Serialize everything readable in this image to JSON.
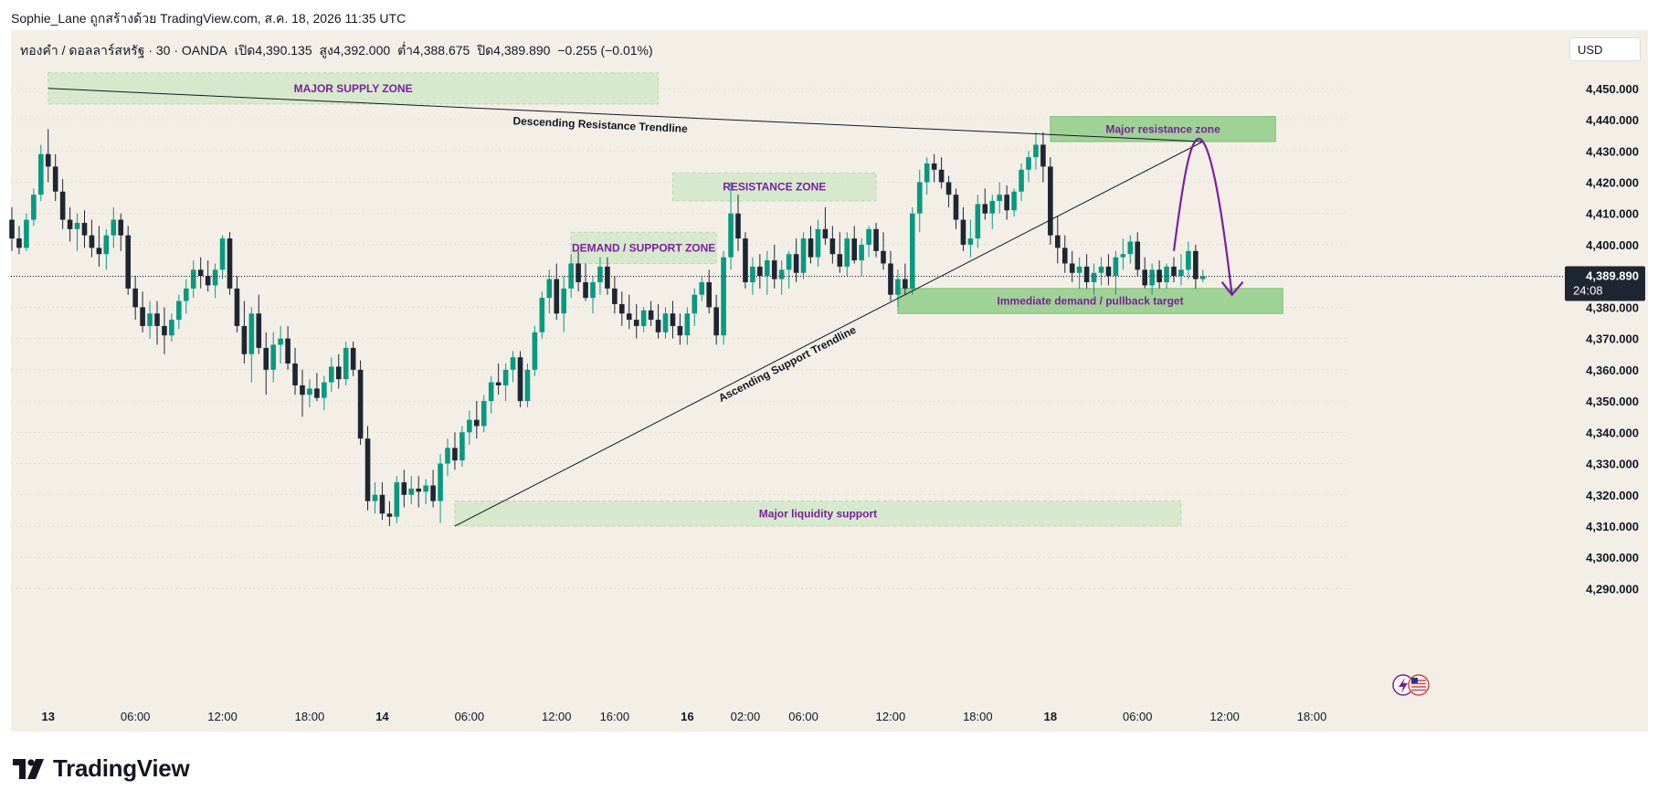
{
  "attribution": "Sophie_Lane ถูกสร้างด้วย TradingView.com, ส.ค. 18, 2026 11:35 UTC",
  "header": {
    "symbol": "ทองคำ / ดอลลาร์สหรัฐ · 30 · OANDA",
    "open": "เปิด4,390.135",
    "high": "สูง4,392.000",
    "low": "ต่ำ4,388.675",
    "close": "ปิด4,389.890",
    "change": "−0.255 (−0.01%)",
    "currency": "USD"
  },
  "brand": "TradingView",
  "colors": {
    "background": "#f3efe7",
    "up": "#089981",
    "down": "#1f2633",
    "zone": "#c5e4bd",
    "zone_strong": "#8fcc86",
    "annotation_text": "#7b1fa2",
    "arrow": "#7b1fa2"
  },
  "chart_data": {
    "type": "candlestick",
    "symbol": "XAU/USD",
    "interval": "30",
    "ylim": [
      4284,
      4459
    ],
    "y_ticks": [
      4290,
      4300,
      4310,
      4320,
      4330,
      4340,
      4350,
      4360,
      4370,
      4380,
      4390,
      4400,
      4410,
      4420,
      4430,
      4440,
      4450
    ],
    "y_tick_labels": [
      "4,290.000",
      "4,300.000",
      "4,310.000",
      "4,320.000",
      "4,330.000",
      "4,340.000",
      "4,350.000",
      "4,360.000",
      "4,370.000",
      "4,380.000",
      "4,390.000",
      "4,400.000",
      "4,410.000",
      "4,420.000",
      "4,430.000",
      "4,440.000",
      "4,450.000"
    ],
    "x_ticks": [
      {
        "bar": 5,
        "label": "13",
        "bold": true
      },
      {
        "bar": 17,
        "label": "06:00",
        "bold": false
      },
      {
        "bar": 29,
        "label": "12:00",
        "bold": false
      },
      {
        "bar": 41,
        "label": "18:00",
        "bold": false
      },
      {
        "bar": 51,
        "label": "14",
        "bold": true
      },
      {
        "bar": 63,
        "label": "06:00",
        "bold": false
      },
      {
        "bar": 75,
        "label": "12:00",
        "bold": false
      },
      {
        "bar": 83,
        "label": "16:00",
        "bold": false
      },
      {
        "bar": 93,
        "label": "16",
        "bold": true
      },
      {
        "bar": 101,
        "label": "02:00",
        "bold": false
      },
      {
        "bar": 109,
        "label": "06:00",
        "bold": false
      },
      {
        "bar": 121,
        "label": "12:00",
        "bold": false
      },
      {
        "bar": 133,
        "label": "18:00",
        "bold": false
      },
      {
        "bar": 143,
        "label": "18",
        "bold": true
      },
      {
        "bar": 155,
        "label": "06:00",
        "bold": false
      },
      {
        "bar": 167,
        "label": "12:00",
        "bold": false
      },
      {
        "bar": 179,
        "label": "18:00",
        "bold": false
      }
    ],
    "last_price": {
      "value": 4389.89,
      "label": "4,389.890",
      "countdown": "24:08"
    },
    "candles": [
      [
        4408,
        4412,
        4398,
        4402
      ],
      [
        4402,
        4406,
        4397,
        4399
      ],
      [
        4399,
        4410,
        4398,
        4408
      ],
      [
        4408,
        4418,
        4406,
        4416
      ],
      [
        4416,
        4432,
        4414,
        4429
      ],
      [
        4429,
        4437,
        4420,
        4425
      ],
      [
        4425,
        4429,
        4414,
        4417
      ],
      [
        4417,
        4421,
        4405,
        4408
      ],
      [
        4408,
        4412,
        4401,
        4405
      ],
      [
        4405,
        4410,
        4398,
        4407
      ],
      [
        4407,
        4411,
        4399,
        4403
      ],
      [
        4403,
        4408,
        4396,
        4399
      ],
      [
        4399,
        4406,
        4393,
        4397
      ],
      [
        4397,
        4405,
        4392,
        4403
      ],
      [
        4403,
        4412,
        4399,
        4408
      ],
      [
        4408,
        4410,
        4398,
        4403
      ],
      [
        4403,
        4406,
        4384,
        4386
      ],
      [
        4386,
        4390,
        4376,
        4380
      ],
      [
        4380,
        4385,
        4372,
        4374
      ],
      [
        4374,
        4382,
        4370,
        4378
      ],
      [
        4378,
        4382,
        4368,
        4374
      ],
      [
        4374,
        4380,
        4365,
        4371
      ],
      [
        4371,
        4378,
        4369,
        4376
      ],
      [
        4376,
        4384,
        4373,
        4382
      ],
      [
        4382,
        4389,
        4378,
        4386
      ],
      [
        4386,
        4395,
        4383,
        4392
      ],
      [
        4392,
        4396,
        4386,
        4390
      ],
      [
        4390,
        4395,
        4385,
        4387
      ],
      [
        4387,
        4394,
        4383,
        4392
      ],
      [
        4392,
        4403,
        4389,
        4402
      ],
      [
        4402,
        4404,
        4384,
        4386
      ],
      [
        4386,
        4390,
        4372,
        4374
      ],
      [
        4374,
        4382,
        4362,
        4365
      ],
      [
        4365,
        4380,
        4356,
        4378
      ],
      [
        4378,
        4384,
        4365,
        4367
      ],
      [
        4367,
        4372,
        4352,
        4360
      ],
      [
        4360,
        4372,
        4356,
        4368
      ],
      [
        4368,
        4374,
        4362,
        4370
      ],
      [
        4370,
        4374,
        4360,
        4362
      ],
      [
        4362,
        4367,
        4352,
        4355
      ],
      [
        4355,
        4360,
        4345,
        4352
      ],
      [
        4352,
        4357,
        4348,
        4354
      ],
      [
        4354,
        4359,
        4350,
        4351
      ],
      [
        4351,
        4358,
        4347,
        4356
      ],
      [
        4356,
        4364,
        4353,
        4361
      ],
      [
        4361,
        4365,
        4354,
        4357
      ],
      [
        4357,
        4369,
        4355,
        4367
      ],
      [
        4367,
        4369,
        4358,
        4360
      ],
      [
        4360,
        4363,
        4336,
        4338
      ],
      [
        4338,
        4342,
        4315,
        4318
      ],
      [
        4318,
        4324,
        4314,
        4320
      ],
      [
        4320,
        4324,
        4312,
        4314
      ],
      [
        4314,
        4318,
        4310,
        4313
      ],
      [
        4313,
        4326,
        4311,
        4324
      ],
      [
        4324,
        4328,
        4316,
        4320
      ],
      [
        4320,
        4326,
        4317,
        4322
      ],
      [
        4322,
        4326,
        4316,
        4321
      ],
      [
        4321,
        4325,
        4317,
        4323
      ],
      [
        4323,
        4328,
        4316,
        4318
      ],
      [
        4318,
        4333,
        4311,
        4330
      ],
      [
        4330,
        4338,
        4326,
        4335
      ],
      [
        4335,
        4340,
        4328,
        4331
      ],
      [
        4331,
        4342,
        4329,
        4340
      ],
      [
        4340,
        4347,
        4336,
        4344
      ],
      [
        4344,
        4350,
        4338,
        4342
      ],
      [
        4342,
        4352,
        4340,
        4350
      ],
      [
        4350,
        4358,
        4346,
        4356
      ],
      [
        4356,
        4362,
        4352,
        4355
      ],
      [
        4355,
        4362,
        4350,
        4360
      ],
      [
        4360,
        4366,
        4356,
        4364
      ],
      [
        4364,
        4366,
        4348,
        4350
      ],
      [
        4350,
        4362,
        4348,
        4360
      ],
      [
        4360,
        4374,
        4358,
        4372
      ],
      [
        4372,
        4385,
        4370,
        4383
      ],
      [
        4383,
        4392,
        4378,
        4389
      ],
      [
        4389,
        4394,
        4376,
        4378
      ],
      [
        4378,
        4390,
        4372,
        4386
      ],
      [
        4386,
        4397,
        4383,
        4394
      ],
      [
        4394,
        4398,
        4385,
        4388
      ],
      [
        4388,
        4394,
        4382,
        4383
      ],
      [
        4383,
        4390,
        4378,
        4388
      ],
      [
        4388,
        4396,
        4384,
        4393
      ],
      [
        4393,
        4396,
        4384,
        4386
      ],
      [
        4386,
        4390,
        4378,
        4381
      ],
      [
        4381,
        4385,
        4374,
        4378
      ],
      [
        4378,
        4384,
        4373,
        4376
      ],
      [
        4376,
        4381,
        4370,
        4374
      ],
      [
        4374,
        4380,
        4372,
        4379
      ],
      [
        4379,
        4382,
        4374,
        4376
      ],
      [
        4376,
        4381,
        4370,
        4372
      ],
      [
        4372,
        4380,
        4370,
        4378
      ],
      [
        4378,
        4382,
        4370,
        4374
      ],
      [
        4374,
        4378,
        4368,
        4371
      ],
      [
        4371,
        4380,
        4368,
        4378
      ],
      [
        4378,
        4386,
        4374,
        4384
      ],
      [
        4384,
        4390,
        4382,
        4388
      ],
      [
        4388,
        4392,
        4378,
        4380
      ],
      [
        4380,
        4384,
        4368,
        4371
      ],
      [
        4371,
        4398,
        4368,
        4396
      ],
      [
        4396,
        4420,
        4392,
        4410
      ],
      [
        4410,
        4416,
        4398,
        4402
      ],
      [
        4402,
        4404,
        4386,
        4388
      ],
      [
        4388,
        4396,
        4384,
        4393
      ],
      [
        4393,
        4397,
        4386,
        4390
      ],
      [
        4390,
        4398,
        4384,
        4395
      ],
      [
        4395,
        4400,
        4386,
        4389
      ],
      [
        4389,
        4395,
        4384,
        4392
      ],
      [
        4392,
        4398,
        4386,
        4397
      ],
      [
        4397,
        4402,
        4388,
        4391
      ],
      [
        4391,
        4404,
        4389,
        4402
      ],
      [
        4402,
        4406,
        4394,
        4396
      ],
      [
        4396,
        4408,
        4393,
        4405
      ],
      [
        4405,
        4412,
        4400,
        4402
      ],
      [
        4402,
        4406,
        4394,
        4397
      ],
      [
        4397,
        4404,
        4391,
        4393
      ],
      [
        4393,
        4404,
        4390,
        4402
      ],
      [
        4402,
        4406,
        4394,
        4395
      ],
      [
        4395,
        4402,
        4390,
        4400
      ],
      [
        4400,
        4406,
        4396,
        4405
      ],
      [
        4405,
        4407,
        4396,
        4398
      ],
      [
        4398,
        4404,
        4392,
        4394
      ],
      [
        4394,
        4398,
        4382,
        4384
      ],
      [
        4384,
        4392,
        4380,
        4389
      ],
      [
        4389,
        4394,
        4384,
        4386
      ],
      [
        4386,
        4412,
        4384,
        4410
      ],
      [
        4410,
        4424,
        4404,
        4420
      ],
      [
        4420,
        4428,
        4416,
        4426
      ],
      [
        4426,
        4429,
        4420,
        4424
      ],
      [
        4424,
        4428,
        4418,
        4420
      ],
      [
        4420,
        4422,
        4412,
        4416
      ],
      [
        4416,
        4418,
        4405,
        4408
      ],
      [
        4408,
        4412,
        4398,
        4400
      ],
      [
        4400,
        4408,
        4396,
        4402
      ],
      [
        4402,
        4416,
        4399,
        4413
      ],
      [
        4413,
        4418,
        4408,
        4410
      ],
      [
        4410,
        4416,
        4405,
        4414
      ],
      [
        4414,
        4420,
        4410,
        4416
      ],
      [
        4416,
        4419,
        4408,
        4411
      ],
      [
        4411,
        4418,
        4409,
        4417
      ],
      [
        4417,
        4426,
        4414,
        4424
      ],
      [
        4424,
        4430,
        4420,
        4428
      ],
      [
        4428,
        4436,
        4424,
        4432
      ],
      [
        4432,
        4436,
        4420,
        4425
      ],
      [
        4425,
        4428,
        4400,
        4403
      ],
      [
        4403,
        4409,
        4394,
        4399
      ],
      [
        4399,
        4403,
        4391,
        4394
      ],
      [
        4394,
        4398,
        4388,
        4391
      ],
      [
        4391,
        4396,
        4386,
        4393
      ],
      [
        4393,
        4397,
        4386,
        4388
      ],
      [
        4388,
        4394,
        4384,
        4391
      ],
      [
        4391,
        4396,
        4387,
        4393
      ],
      [
        4393,
        4397,
        4387,
        4390
      ],
      [
        4390,
        4398,
        4384,
        4396
      ],
      [
        4396,
        4402,
        4392,
        4397
      ],
      [
        4397,
        4403,
        4394,
        4401
      ],
      [
        4401,
        4404,
        4390,
        4392
      ],
      [
        4392,
        4396,
        4386,
        4387
      ],
      [
        4387,
        4394,
        4384,
        4392
      ],
      [
        4392,
        4395,
        4386,
        4388
      ],
      [
        4388,
        4394,
        4386,
        4393
      ],
      [
        4393,
        4396,
        4388,
        4390
      ],
      [
        4390,
        4397,
        4387,
        4392
      ],
      [
        4392,
        4401,
        4389,
        4398
      ],
      [
        4398,
        4400,
        4386,
        4389
      ],
      [
        4389,
        4392,
        4388,
        4389.89
      ]
    ],
    "zones": [
      {
        "label": "MAJOR SUPPLY ZONE",
        "from_bar": 5,
        "to_bar": 89,
        "y_top": 4455,
        "y_bottom": 4445,
        "style": "light"
      },
      {
        "label": "Major resistance zone",
        "from_bar": 143,
        "to_bar": 174,
        "y_top": 4441,
        "y_bottom": 4433,
        "style": "strong"
      },
      {
        "label": "RESISTANCE ZONE",
        "from_bar": 91,
        "to_bar": 119,
        "y_top": 4423,
        "y_bottom": 4414,
        "style": "light"
      },
      {
        "label": "DEMAND / SUPPORT ZONE",
        "from_bar": 77,
        "to_bar": 97,
        "y_top": 4404,
        "y_bottom": 4394,
        "style": "light"
      },
      {
        "label": "Immediate demand / pullback target",
        "from_bar": 122,
        "to_bar": 175,
        "y_top": 4386,
        "y_bottom": 4378,
        "style": "strong"
      },
      {
        "label": "Major liquidity support",
        "from_bar": 61,
        "to_bar": 161,
        "y_top": 4318,
        "y_bottom": 4310,
        "style": "light"
      }
    ],
    "trendlines": [
      {
        "label": "Descending Resistance Trendline",
        "from": [
          5,
          4450
        ],
        "to": [
          164,
          4433
        ]
      },
      {
        "label": "Ascending Support Trendline",
        "from": [
          61,
          4310
        ],
        "to": [
          164,
          4433
        ]
      }
    ],
    "forecast_path": {
      "points": [
        [
          160,
          4398
        ],
        [
          164,
          4433
        ],
        [
          168,
          4384
        ]
      ]
    }
  }
}
